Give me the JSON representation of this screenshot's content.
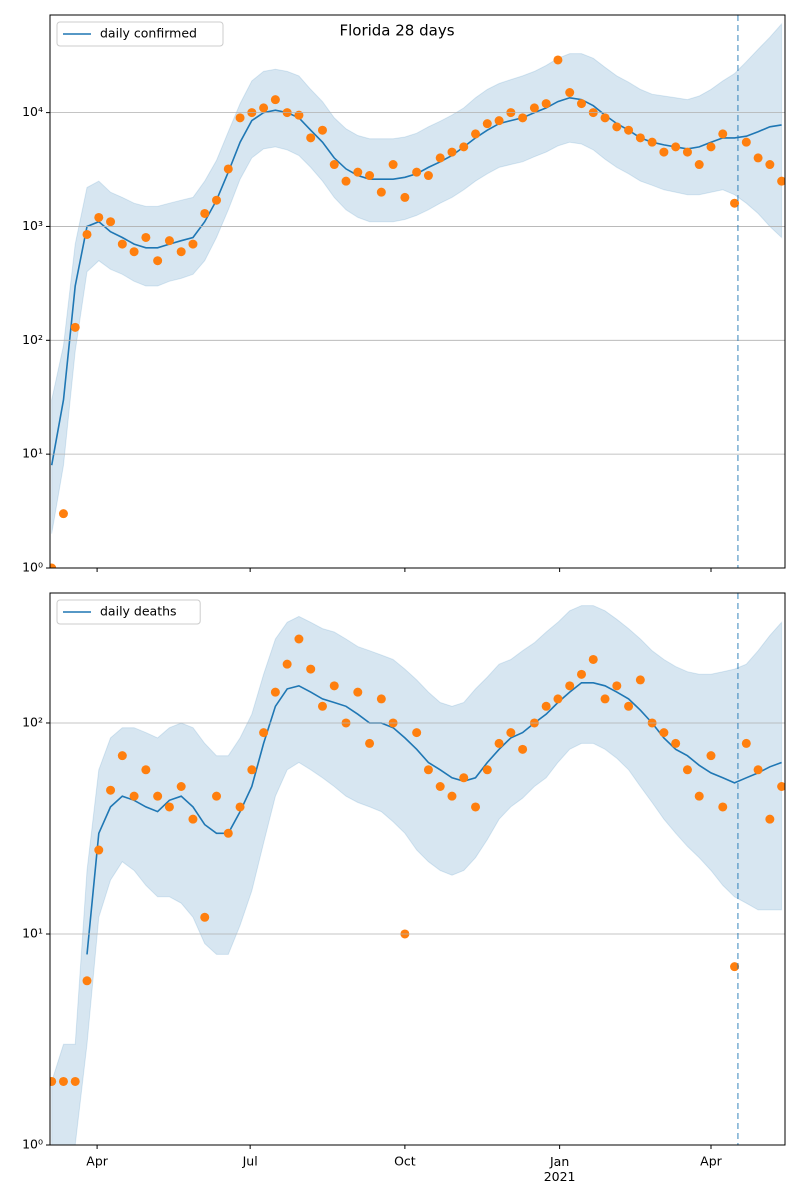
{
  "chart_data": [
    {
      "type": "line",
      "title": "Florida 28 days",
      "yscale": "log",
      "grid": true,
      "legend": "upper left",
      "xlim": [
        "2020-03-04",
        "2021-05-15"
      ],
      "ylim": [
        1,
        72000
      ],
      "yticks": [
        {
          "value": 1,
          "label": "10⁰"
        },
        {
          "value": 10,
          "label": "10¹"
        },
        {
          "value": 100,
          "label": "10²"
        },
        {
          "value": 1000,
          "label": "10³"
        },
        {
          "value": 10000,
          "label": "10⁴"
        }
      ],
      "x": [
        "2020-03-05",
        "2020-03-12",
        "2020-03-19",
        "2020-03-26",
        "2020-04-02",
        "2020-04-09",
        "2020-04-16",
        "2020-04-23",
        "2020-04-30",
        "2020-05-07",
        "2020-05-14",
        "2020-05-21",
        "2020-05-28",
        "2020-06-04",
        "2020-06-11",
        "2020-06-18",
        "2020-06-25",
        "2020-07-02",
        "2020-07-09",
        "2020-07-16",
        "2020-07-23",
        "2020-07-30",
        "2020-08-06",
        "2020-08-13",
        "2020-08-20",
        "2020-08-27",
        "2020-09-03",
        "2020-09-10",
        "2020-09-17",
        "2020-09-24",
        "2020-10-01",
        "2020-10-08",
        "2020-10-15",
        "2020-10-22",
        "2020-10-29",
        "2020-11-05",
        "2020-11-12",
        "2020-11-19",
        "2020-11-26",
        "2020-12-03",
        "2020-12-10",
        "2020-12-17",
        "2020-12-24",
        "2020-12-31",
        "2021-01-07",
        "2021-01-14",
        "2021-01-21",
        "2021-01-28",
        "2021-02-04",
        "2021-02-11",
        "2021-02-18",
        "2021-02-25",
        "2021-03-04",
        "2021-03-11",
        "2021-03-18",
        "2021-03-25",
        "2021-04-01",
        "2021-04-08",
        "2021-04-15",
        "2021-04-22",
        "2021-04-29",
        "2021-05-06",
        "2021-05-13"
      ],
      "series": [
        {
          "name": "daily confirmed",
          "color": "#1f77b4",
          "values": [
            8,
            30,
            300,
            1000,
            1100,
            900,
            800,
            700,
            650,
            650,
            700,
            750,
            800,
            1100,
            1700,
            3000,
            5500,
            8500,
            10000,
            10500,
            10000,
            9000,
            7000,
            5500,
            4000,
            3200,
            2800,
            2600,
            2600,
            2600,
            2700,
            2900,
            3300,
            3700,
            4200,
            5000,
            6000,
            7000,
            8000,
            8500,
            9000,
            10000,
            11000,
            12500,
            13500,
            13000,
            11500,
            9500,
            8000,
            7000,
            6000,
            5500,
            5200,
            5000,
            4800,
            5000,
            5500,
            6000,
            6000,
            6200,
            6800,
            7500,
            7800
          ]
        }
      ],
      "band": {
        "color": "#1f77b4",
        "lower": [
          2,
          8,
          80,
          400,
          500,
          420,
          380,
          330,
          300,
          300,
          330,
          350,
          380,
          500,
          800,
          1400,
          2600,
          4000,
          4800,
          5000,
          4700,
          4200,
          3300,
          2500,
          1800,
          1400,
          1200,
          1100,
          1100,
          1100,
          1150,
          1250,
          1400,
          1600,
          1800,
          2100,
          2500,
          2900,
          3300,
          3500,
          3700,
          4100,
          4500,
          5100,
          5500,
          5300,
          4700,
          3900,
          3300,
          2900,
          2500,
          2300,
          2100,
          2000,
          1900,
          1900,
          2000,
          2100,
          1900,
          1600,
          1300,
          1000,
          800
        ],
        "upper": [
          30,
          90,
          700,
          2200,
          2500,
          2000,
          1800,
          1600,
          1500,
          1500,
          1600,
          1700,
          1800,
          2500,
          3800,
          6800,
          12000,
          19000,
          23000,
          24000,
          23000,
          21000,
          16000,
          12500,
          9000,
          7200,
          6300,
          5900,
          5900,
          5900,
          6100,
          6600,
          7500,
          8400,
          9500,
          11000,
          13500,
          16000,
          18000,
          19500,
          21000,
          23000,
          26000,
          30000,
          33000,
          33000,
          30000,
          25000,
          21000,
          18500,
          16000,
          14500,
          14000,
          13500,
          13000,
          14000,
          16000,
          19000,
          22000,
          28000,
          36000,
          46000,
          60000
        ]
      },
      "points": {
        "color": "#ff7f0e",
        "values": [
          1,
          3,
          130,
          850,
          1200,
          1100,
          700,
          600,
          800,
          500,
          750,
          600,
          700,
          1300,
          1700,
          3200,
          9000,
          10000,
          11000,
          13000,
          10000,
          9500,
          6000,
          7000,
          3500,
          2500,
          3000,
          2800,
          2000,
          3500,
          1800,
          3000,
          2800,
          4000,
          4500,
          5000,
          6500,
          8000,
          8500,
          10000,
          9000,
          11000,
          12000,
          29000,
          15000,
          12000,
          10000,
          9000,
          7500,
          7000,
          6000,
          5500,
          4500,
          5000,
          4500,
          3500,
          5000,
          6500,
          1600,
          5500,
          4000,
          3500,
          2500
        ]
      },
      "vline": "2021-04-17"
    },
    {
      "type": "line",
      "yscale": "log",
      "grid": true,
      "legend": "upper left",
      "xlim": [
        "2020-03-04",
        "2021-05-15"
      ],
      "ylim": [
        1,
        413
      ],
      "xticks": [
        {
          "value": "2020-04-01",
          "label": "Apr"
        },
        {
          "value": "2020-07-01",
          "label": "Jul"
        },
        {
          "value": "2020-10-01",
          "label": "Oct"
        },
        {
          "value": "2021-01-01",
          "label": "Jan\n2021"
        },
        {
          "value": "2021-04-01",
          "label": "Apr"
        }
      ],
      "yticks": [
        {
          "value": 1,
          "label": "10⁰"
        },
        {
          "value": 10,
          "label": "10¹"
        },
        {
          "value": 100,
          "label": "10²"
        }
      ],
      "x": [
        "2020-03-05",
        "2020-03-12",
        "2020-03-19",
        "2020-03-26",
        "2020-04-02",
        "2020-04-09",
        "2020-04-16",
        "2020-04-23",
        "2020-04-30",
        "2020-05-07",
        "2020-05-14",
        "2020-05-21",
        "2020-05-28",
        "2020-06-04",
        "2020-06-11",
        "2020-06-18",
        "2020-06-25",
        "2020-07-02",
        "2020-07-09",
        "2020-07-16",
        "2020-07-23",
        "2020-07-30",
        "2020-08-06",
        "2020-08-13",
        "2020-08-20",
        "2020-08-27",
        "2020-09-03",
        "2020-09-10",
        "2020-09-17",
        "2020-09-24",
        "2020-10-01",
        "2020-10-08",
        "2020-10-15",
        "2020-10-22",
        "2020-10-29",
        "2020-11-05",
        "2020-11-12",
        "2020-11-19",
        "2020-11-26",
        "2020-12-03",
        "2020-12-10",
        "2020-12-17",
        "2020-12-24",
        "2020-12-31",
        "2021-01-07",
        "2021-01-14",
        "2021-01-21",
        "2021-01-28",
        "2021-02-04",
        "2021-02-11",
        "2021-02-18",
        "2021-02-25",
        "2021-03-04",
        "2021-03-11",
        "2021-03-18",
        "2021-03-25",
        "2021-04-01",
        "2021-04-08",
        "2021-04-15",
        "2021-04-22",
        "2021-04-29",
        "2021-05-06",
        "2021-05-13"
      ],
      "series": [
        {
          "name": "daily deaths",
          "color": "#1f77b4",
          "values": [
            null,
            null,
            null,
            8,
            30,
            40,
            45,
            43,
            40,
            38,
            43,
            45,
            40,
            33,
            30,
            30,
            38,
            50,
            80,
            120,
            145,
            150,
            140,
            130,
            125,
            120,
            110,
            100,
            100,
            95,
            85,
            75,
            65,
            60,
            55,
            53,
            55,
            65,
            75,
            85,
            90,
            100,
            110,
            125,
            140,
            155,
            155,
            150,
            140,
            130,
            115,
            100,
            85,
            75,
            70,
            63,
            58,
            55,
            52,
            55,
            58,
            62,
            65
          ]
        }
      ],
      "band": {
        "color": "#1f77b4",
        "lower": [
          1,
          1,
          1,
          3,
          12,
          18,
          22,
          20,
          17,
          15,
          15,
          14,
          12,
          9,
          8,
          8,
          11,
          16,
          27,
          45,
          60,
          65,
          60,
          55,
          50,
          45,
          42,
          40,
          38,
          34,
          30,
          25,
          22,
          20,
          19,
          20,
          23,
          28,
          35,
          40,
          44,
          50,
          55,
          65,
          75,
          80,
          80,
          75,
          68,
          60,
          50,
          42,
          35,
          30,
          26,
          23,
          20,
          17,
          15,
          14,
          13,
          13,
          13
        ],
        "upper": [
          2,
          3,
          3,
          20,
          60,
          85,
          95,
          95,
          90,
          85,
          95,
          100,
          95,
          80,
          70,
          70,
          85,
          110,
          170,
          250,
          300,
          320,
          300,
          280,
          270,
          250,
          230,
          220,
          210,
          200,
          180,
          160,
          140,
          125,
          120,
          125,
          145,
          165,
          190,
          200,
          220,
          240,
          270,
          300,
          340,
          360,
          360,
          340,
          310,
          280,
          250,
          220,
          200,
          185,
          175,
          170,
          170,
          175,
          180,
          190,
          220,
          260,
          300
        ]
      },
      "points": {
        "color": "#ff7f0e",
        "values": [
          2,
          2,
          2,
          6,
          25,
          48,
          70,
          45,
          60,
          45,
          40,
          50,
          35,
          12,
          45,
          30,
          40,
          60,
          90,
          140,
          190,
          250,
          180,
          120,
          150,
          100,
          140,
          80,
          130,
          100,
          10,
          90,
          60,
          50,
          45,
          55,
          40,
          60,
          80,
          90,
          75,
          100,
          120,
          130,
          150,
          170,
          200,
          130,
          150,
          120,
          160,
          100,
          90,
          80,
          60,
          45,
          70,
          40,
          7,
          80,
          60,
          35,
          50
        ]
      },
      "vline": "2021-04-17"
    }
  ]
}
